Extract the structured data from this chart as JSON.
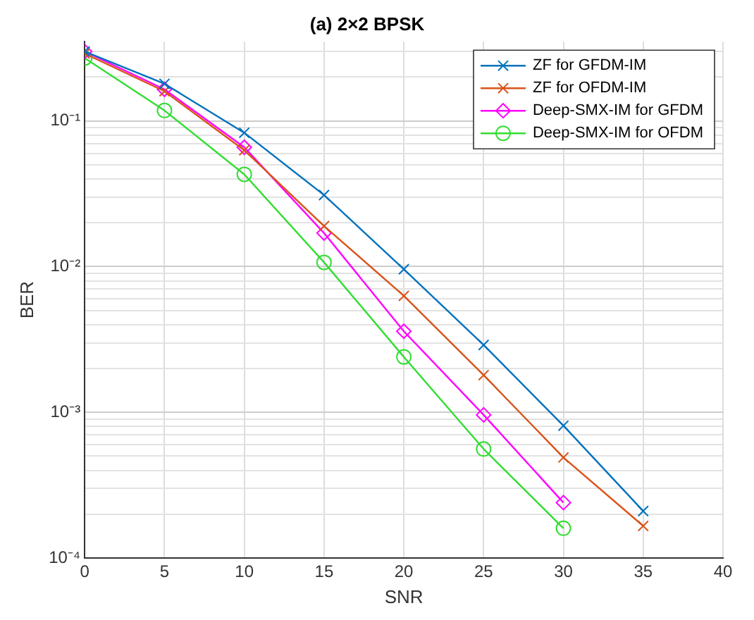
{
  "chart_data": {
    "type": "line",
    "title": "(a) 2×2 BPSK",
    "xlabel": "SNR",
    "ylabel": "BER",
    "log": "y",
    "grid": true,
    "legend": "top right",
    "x": [
      0,
      5,
      10,
      15,
      20,
      25,
      30,
      35
    ],
    "xlim": [
      0,
      40
    ],
    "xticks": [
      0,
      5,
      10,
      15,
      20,
      25,
      30,
      35,
      40
    ],
    "ylim": [
      0.0001,
      0.35
    ],
    "yticks": [
      {
        "value": 0.0001,
        "label": "10⁻⁴"
      },
      {
        "value": 0.0002,
        "label": null
      },
      {
        "value": 0.0003,
        "label": null
      },
      {
        "value": 0.0004,
        "label": null
      },
      {
        "value": 0.0005,
        "label": null
      },
      {
        "value": 0.0006,
        "label": null
      },
      {
        "value": 0.0007,
        "label": null
      },
      {
        "value": 0.0008,
        "label": null
      },
      {
        "value": 0.0009,
        "label": null
      },
      {
        "value": 0.001,
        "label": "10⁻³"
      },
      {
        "value": 0.002,
        "label": null
      },
      {
        "value": 0.003,
        "label": null
      },
      {
        "value": 0.004,
        "label": null
      },
      {
        "value": 0.005,
        "label": null
      },
      {
        "value": 0.006,
        "label": null
      },
      {
        "value": 0.007,
        "label": null
      },
      {
        "value": 0.008,
        "label": null
      },
      {
        "value": 0.009,
        "label": null
      },
      {
        "value": 0.01,
        "label": "10⁻²"
      },
      {
        "value": 0.02,
        "label": null
      },
      {
        "value": 0.03,
        "label": null
      },
      {
        "value": 0.04,
        "label": null
      },
      {
        "value": 0.05,
        "label": null
      },
      {
        "value": 0.06,
        "label": null
      },
      {
        "value": 0.07,
        "label": null
      },
      {
        "value": 0.08,
        "label": null
      },
      {
        "value": 0.09,
        "label": null
      },
      {
        "value": 0.1,
        "label": "10⁻¹"
      },
      {
        "value": 0.2,
        "label": null
      },
      {
        "value": 0.3,
        "label": null
      }
    ],
    "series": [
      {
        "name": "ZF for GFDM-IM",
        "color": "#0072bd",
        "marker": "cross",
        "values": [
          0.3,
          0.18,
          0.083,
          0.031,
          0.0096,
          0.0029,
          0.00081,
          0.00021
        ]
      },
      {
        "name": "ZF for OFDM-IM",
        "color": "#d95319",
        "marker": "cross",
        "values": [
          0.29,
          0.16,
          0.063,
          0.019,
          0.0063,
          0.0018,
          0.00049,
          0.000166
        ]
      },
      {
        "name": "Deep-SMX-IM for GFDM",
        "color": "#ff00ff",
        "marker": "diamond",
        "values": [
          0.3,
          0.165,
          0.066,
          0.017,
          0.0036,
          0.00096,
          0.00024,
          null
        ]
      },
      {
        "name": "Deep-SMX-IM for OFDM",
        "color": "#33dd33",
        "marker": "circle",
        "values": [
          0.27,
          0.118,
          0.043,
          0.0107,
          0.0024,
          0.00056,
          0.00016,
          null
        ]
      }
    ]
  }
}
